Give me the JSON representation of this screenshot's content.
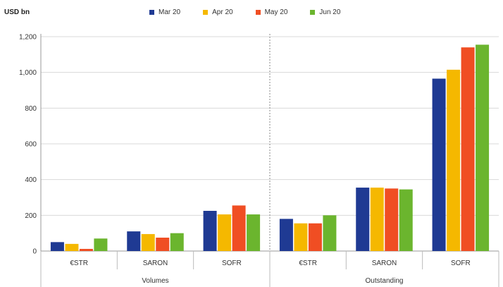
{
  "chart_data": {
    "type": "bar",
    "unit_label": "USD bn",
    "groups": [
      {
        "label": "Volumes",
        "categories": [
          "€STR",
          "SARON",
          "SOFR"
        ]
      },
      {
        "label": "Outstanding",
        "categories": [
          "€STR",
          "SARON",
          "SOFR"
        ]
      }
    ],
    "categories": [
      "€STR",
      "SARON",
      "SOFR",
      "€STR",
      "SARON",
      "SOFR"
    ],
    "series": [
      {
        "name": "Mar 20",
        "color": "#1f3a93",
        "values": [
          50,
          110,
          225,
          180,
          355,
          965
        ]
      },
      {
        "name": "Apr 20",
        "color": "#f5b800",
        "values": [
          40,
          95,
          205,
          155,
          355,
          1015
        ]
      },
      {
        "name": "May 20",
        "color": "#f04e23",
        "values": [
          12,
          75,
          255,
          155,
          350,
          1140
        ]
      },
      {
        "name": "Jun 20",
        "color": "#6bb52e",
        "values": [
          70,
          100,
          205,
          200,
          345,
          1155
        ]
      }
    ],
    "ylim": [
      0,
      1200
    ],
    "yticks": [
      0,
      200,
      400,
      600,
      800,
      "1,000",
      "1,200"
    ],
    "ytick_values": [
      0,
      200,
      400,
      600,
      800,
      1000,
      1200
    ],
    "grid": true,
    "legend_position": "top"
  }
}
